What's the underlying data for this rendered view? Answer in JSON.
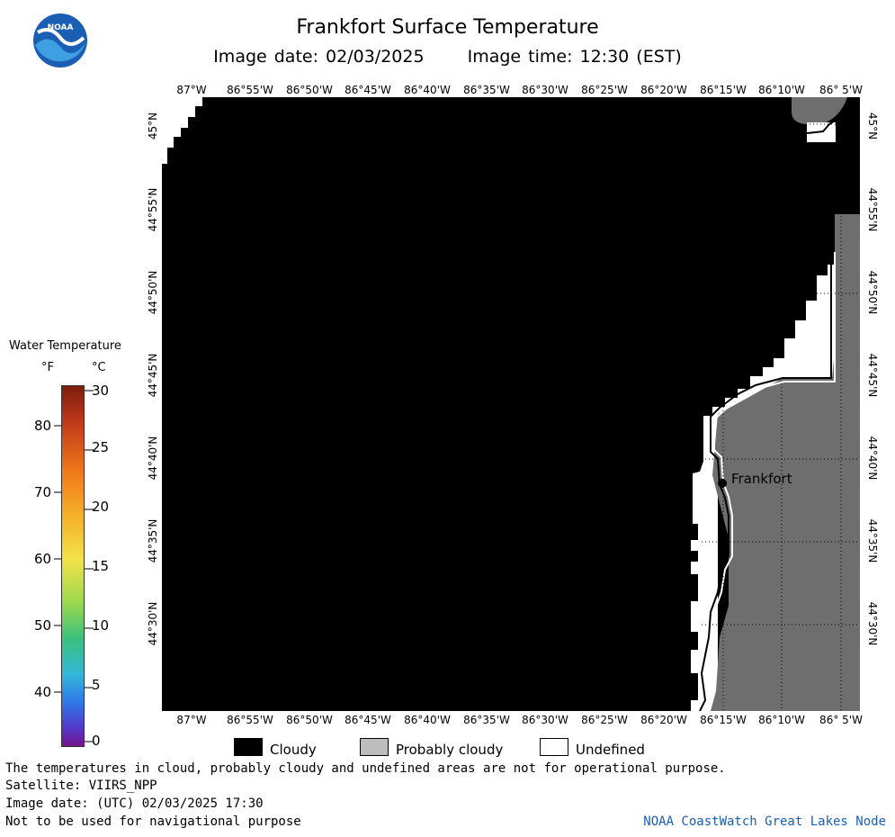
{
  "header": {
    "title": "Frankfort Surface Temperature",
    "image_date": "Image date: 02/03/2025",
    "image_time": "Image time: 12:30 (EST)"
  },
  "logo": {
    "text": "NOAA",
    "colors": {
      "blue": "#1a5fb4",
      "light": "#3ea0e0"
    }
  },
  "map": {
    "lon_labels": [
      "87°W",
      "86°55'W",
      "86°50'W",
      "86°45'W",
      "86°40'W",
      "86°35'W",
      "86°30'W",
      "86°25'W",
      "86°20'W",
      "86°15'W",
      "86°10'W",
      "86° 5'W"
    ],
    "lat_labels": [
      "45°N",
      "44°55'N",
      "44°50'N",
      "44°45'N",
      "44°40'N",
      "44°35'N",
      "44°30'N"
    ],
    "marker_label": "Frankfort",
    "colors": {
      "cloudy": "#000000",
      "probably_cloudy": "#6e6e6e",
      "undefined": "#ffffff"
    }
  },
  "legend": {
    "title": "Water Temperature",
    "unit_f": "°F",
    "unit_c": "°C",
    "f_ticks": [
      "80",
      "70",
      "60",
      "50",
      "40"
    ],
    "c_ticks": [
      "30",
      "25",
      "20",
      "15",
      "10",
      "5",
      "0"
    ],
    "items": [
      "Cloudy",
      "Probably cloudy",
      "Undefined"
    ]
  },
  "footer": {
    "line1": "The temperatures in cloud, probably cloudy and undefined areas are not for operational purpose.",
    "line2": "Satellite: VIIRS_NPP",
    "line3": "Image date: (UTC) 02/03/2025  17:30",
    "line4": "Not to be used for navigational purpose",
    "brand": "NOAA CoastWatch Great Lakes Node"
  }
}
